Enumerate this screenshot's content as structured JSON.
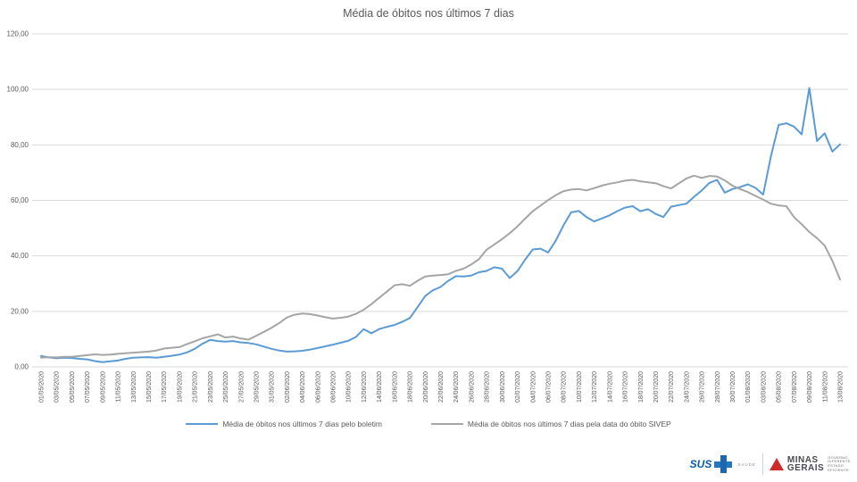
{
  "title": "Média de óbitos nos últimos 7 dias",
  "colors": {
    "boletim_line": "#5B9BD5",
    "sivep_line": "#A5A5A5",
    "gridline": "#D9D9D9",
    "axis_text": "#595959",
    "title_text": "#595959"
  },
  "y_axis": {
    "ticks": [
      "0,00",
      "20,00",
      "40,00",
      "60,00",
      "80,00",
      "100,00",
      "120,00"
    ],
    "min": 0,
    "max": 120,
    "step": 20
  },
  "legend": {
    "items": [
      {
        "label": "Média de óbitos nos últimos 7 dias pelo boletim",
        "color": "#5B9BD5"
      },
      {
        "label": "Média de óbitos nos últimos 7 dias pela data do óbito SIVEP",
        "color": "#A5A5A5"
      }
    ]
  },
  "footer": {
    "sus": {
      "text": "SUS",
      "sub": "SAÚDE"
    },
    "minas": {
      "line1": "MINAS",
      "line2": "GERAIS",
      "tagline": [
        "GOVERNO",
        "DIFERENTE.",
        "ESTADO",
        "EFICIENTE."
      ]
    }
  },
  "chart_data": {
    "type": "line",
    "title": "Média de óbitos nos últimos 7 dias",
    "ylim": [
      0,
      120
    ],
    "grid": true,
    "legend_position": "bottom",
    "x_tick_every": 2,
    "x": [
      "01/05/2020",
      "02/05/2020",
      "03/05/2020",
      "04/05/2020",
      "05/05/2020",
      "06/05/2020",
      "07/05/2020",
      "08/05/2020",
      "09/05/2020",
      "10/05/2020",
      "11/05/2020",
      "12/05/2020",
      "13/05/2020",
      "14/05/2020",
      "15/05/2020",
      "16/05/2020",
      "17/05/2020",
      "18/05/2020",
      "19/05/2020",
      "20/05/2020",
      "21/05/2020",
      "22/05/2020",
      "23/05/2020",
      "24/05/2020",
      "25/05/2020",
      "26/05/2020",
      "27/05/2020",
      "28/05/2020",
      "29/05/2020",
      "30/05/2020",
      "31/05/2020",
      "01/06/2020",
      "02/06/2020",
      "03/06/2020",
      "04/06/2020",
      "05/06/2020",
      "06/06/2020",
      "07/06/2020",
      "08/06/2020",
      "09/06/2020",
      "10/06/2020",
      "11/06/2020",
      "12/06/2020",
      "13/06/2020",
      "14/06/2020",
      "15/06/2020",
      "16/06/2020",
      "17/06/2020",
      "18/06/2020",
      "19/06/2020",
      "20/06/2020",
      "21/06/2020",
      "22/06/2020",
      "23/06/2020",
      "24/06/2020",
      "25/06/2020",
      "26/06/2020",
      "27/06/2020",
      "28/06/2020",
      "29/06/2020",
      "30/06/2020",
      "01/07/2020",
      "02/07/2020",
      "03/07/2020",
      "04/07/2020",
      "05/07/2020",
      "06/07/2020",
      "07/07/2020",
      "08/07/2020",
      "09/07/2020",
      "10/07/2020",
      "11/07/2020",
      "12/07/2020",
      "13/07/2020",
      "14/07/2020",
      "15/07/2020",
      "16/07/2020",
      "17/07/2020",
      "18/07/2020",
      "19/07/2020",
      "20/07/2020",
      "21/07/2020",
      "22/07/2020",
      "23/07/2020",
      "24/07/2020",
      "25/07/2020",
      "26/07/2020",
      "27/07/2020",
      "28/07/2020",
      "29/07/2020",
      "30/07/2020",
      "31/07/2020",
      "01/08/2020",
      "02/08/2020",
      "03/08/2020",
      "04/08/2020",
      "05/08/2020",
      "06/08/2020",
      "07/08/2020",
      "08/08/2020",
      "09/08/2020",
      "10/08/2020",
      "11/08/2020",
      "12/08/2020",
      "13/08/2020"
    ],
    "series": [
      {
        "name": "Média de óbitos nos últimos 7 dias pelo boletim",
        "color": "#5B9BD5",
        "values": [
          3.9,
          3.4,
          3.1,
          3.3,
          3.2,
          2.9,
          2.7,
          2.1,
          1.7,
          2.0,
          2.3,
          2.9,
          3.3,
          3.4,
          3.5,
          3.3,
          3.6,
          4.0,
          4.4,
          5.2,
          6.5,
          8.3,
          9.7,
          9.3,
          9.1,
          9.3,
          8.8,
          8.6,
          8.1,
          7.3,
          6.5,
          5.9,
          5.5,
          5.6,
          5.8,
          6.2,
          6.8,
          7.4,
          8.0,
          8.7,
          9.4,
          10.8,
          13.6,
          12.1,
          13.6,
          14.4,
          15.1,
          16.2,
          17.6,
          21.5,
          25.5,
          27.6,
          28.8,
          31.0,
          32.7,
          32.6,
          32.9,
          34.1,
          34.6,
          35.9,
          35.4,
          32.0,
          34.5,
          38.6,
          42.3,
          42.6,
          41.2,
          45.5,
          51.0,
          55.7,
          56.2,
          54.0,
          52.4,
          53.5,
          54.6,
          56.1,
          57.4,
          57.9,
          56.1,
          56.8,
          55.1,
          54.0,
          57.7,
          58.3,
          58.8,
          61.3,
          63.6,
          66.3,
          67.4,
          62.8,
          64.1,
          64.8,
          65.8,
          64.5,
          62.1,
          75.8,
          87.2,
          87.8,
          86.6,
          83.8,
          100.5,
          81.4,
          84.2,
          77.6,
          80.2
        ]
      },
      {
        "name": "Média de óbitos nos últimos 7 dias pela data do óbito SIVEP",
        "color": "#A5A5A5",
        "values": [
          3.3,
          3.5,
          3.4,
          3.6,
          3.6,
          3.9,
          4.2,
          4.5,
          4.3,
          4.4,
          4.7,
          4.9,
          5.1,
          5.3,
          5.5,
          5.9,
          6.6,
          6.9,
          7.1,
          8.2,
          9.2,
          10.3,
          11.0,
          11.7,
          10.6,
          10.9,
          10.2,
          9.8,
          11.2,
          12.6,
          14.1,
          15.8,
          17.8,
          18.8,
          19.2,
          19.0,
          18.5,
          17.9,
          17.4,
          17.7,
          18.1,
          19.1,
          20.6,
          22.6,
          24.9,
          27.1,
          29.4,
          29.8,
          29.2,
          31.0,
          32.6,
          32.9,
          33.1,
          33.4,
          34.6,
          35.4,
          36.9,
          38.8,
          42.2,
          44.1,
          46.0,
          48.2,
          50.6,
          53.4,
          56.1,
          58.1,
          60.1,
          61.9,
          63.3,
          63.9,
          64.1,
          63.6,
          64.4,
          65.3,
          66.0,
          66.5,
          67.1,
          67.4,
          66.9,
          66.5,
          66.2,
          65.1,
          64.3,
          66.1,
          67.9,
          68.9,
          68.1,
          68.8,
          68.6,
          67.2,
          65.3,
          64.1,
          63.0,
          61.6,
          60.3,
          58.8,
          58.2,
          57.9,
          54.0,
          51.4,
          48.6,
          46.4,
          43.7,
          38.2,
          31.5
        ]
      }
    ]
  }
}
